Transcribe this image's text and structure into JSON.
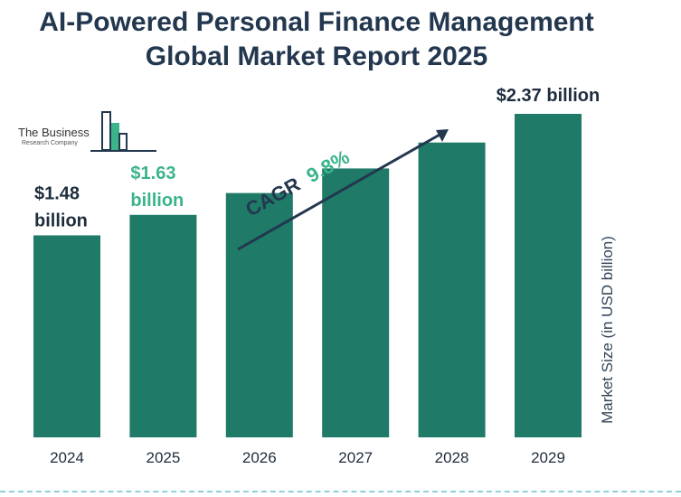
{
  "title_line1": "AI-Powered Personal Finance Management",
  "title_line2": "Global Market Report 2025",
  "logo": {
    "line1": "The Business",
    "line2": "Research Company"
  },
  "cagr": {
    "label": "CAGR",
    "value": "9.8%"
  },
  "colors": {
    "bar": "#1f7a68",
    "title": "#23374f",
    "highlight": "#3bb48a",
    "text": "#1e2d3d"
  },
  "chart_data": {
    "type": "bar",
    "categories": [
      "2024",
      "2025",
      "2026",
      "2027",
      "2028",
      "2029"
    ],
    "values": [
      1.48,
      1.63,
      1.79,
      1.97,
      2.16,
      2.37
    ],
    "ylabel": "Market Size (in USD billion)",
    "ylim": [
      0,
      2.37
    ],
    "data_labels": [
      {
        "index": 0,
        "line1": "$1.48",
        "line2": "billion",
        "highlight": false
      },
      {
        "index": 1,
        "line1": "$1.63",
        "line2": "billion",
        "highlight": true
      },
      {
        "index": 5,
        "line1": "$2.37 billion",
        "line2": "",
        "highlight": false
      }
    ]
  }
}
